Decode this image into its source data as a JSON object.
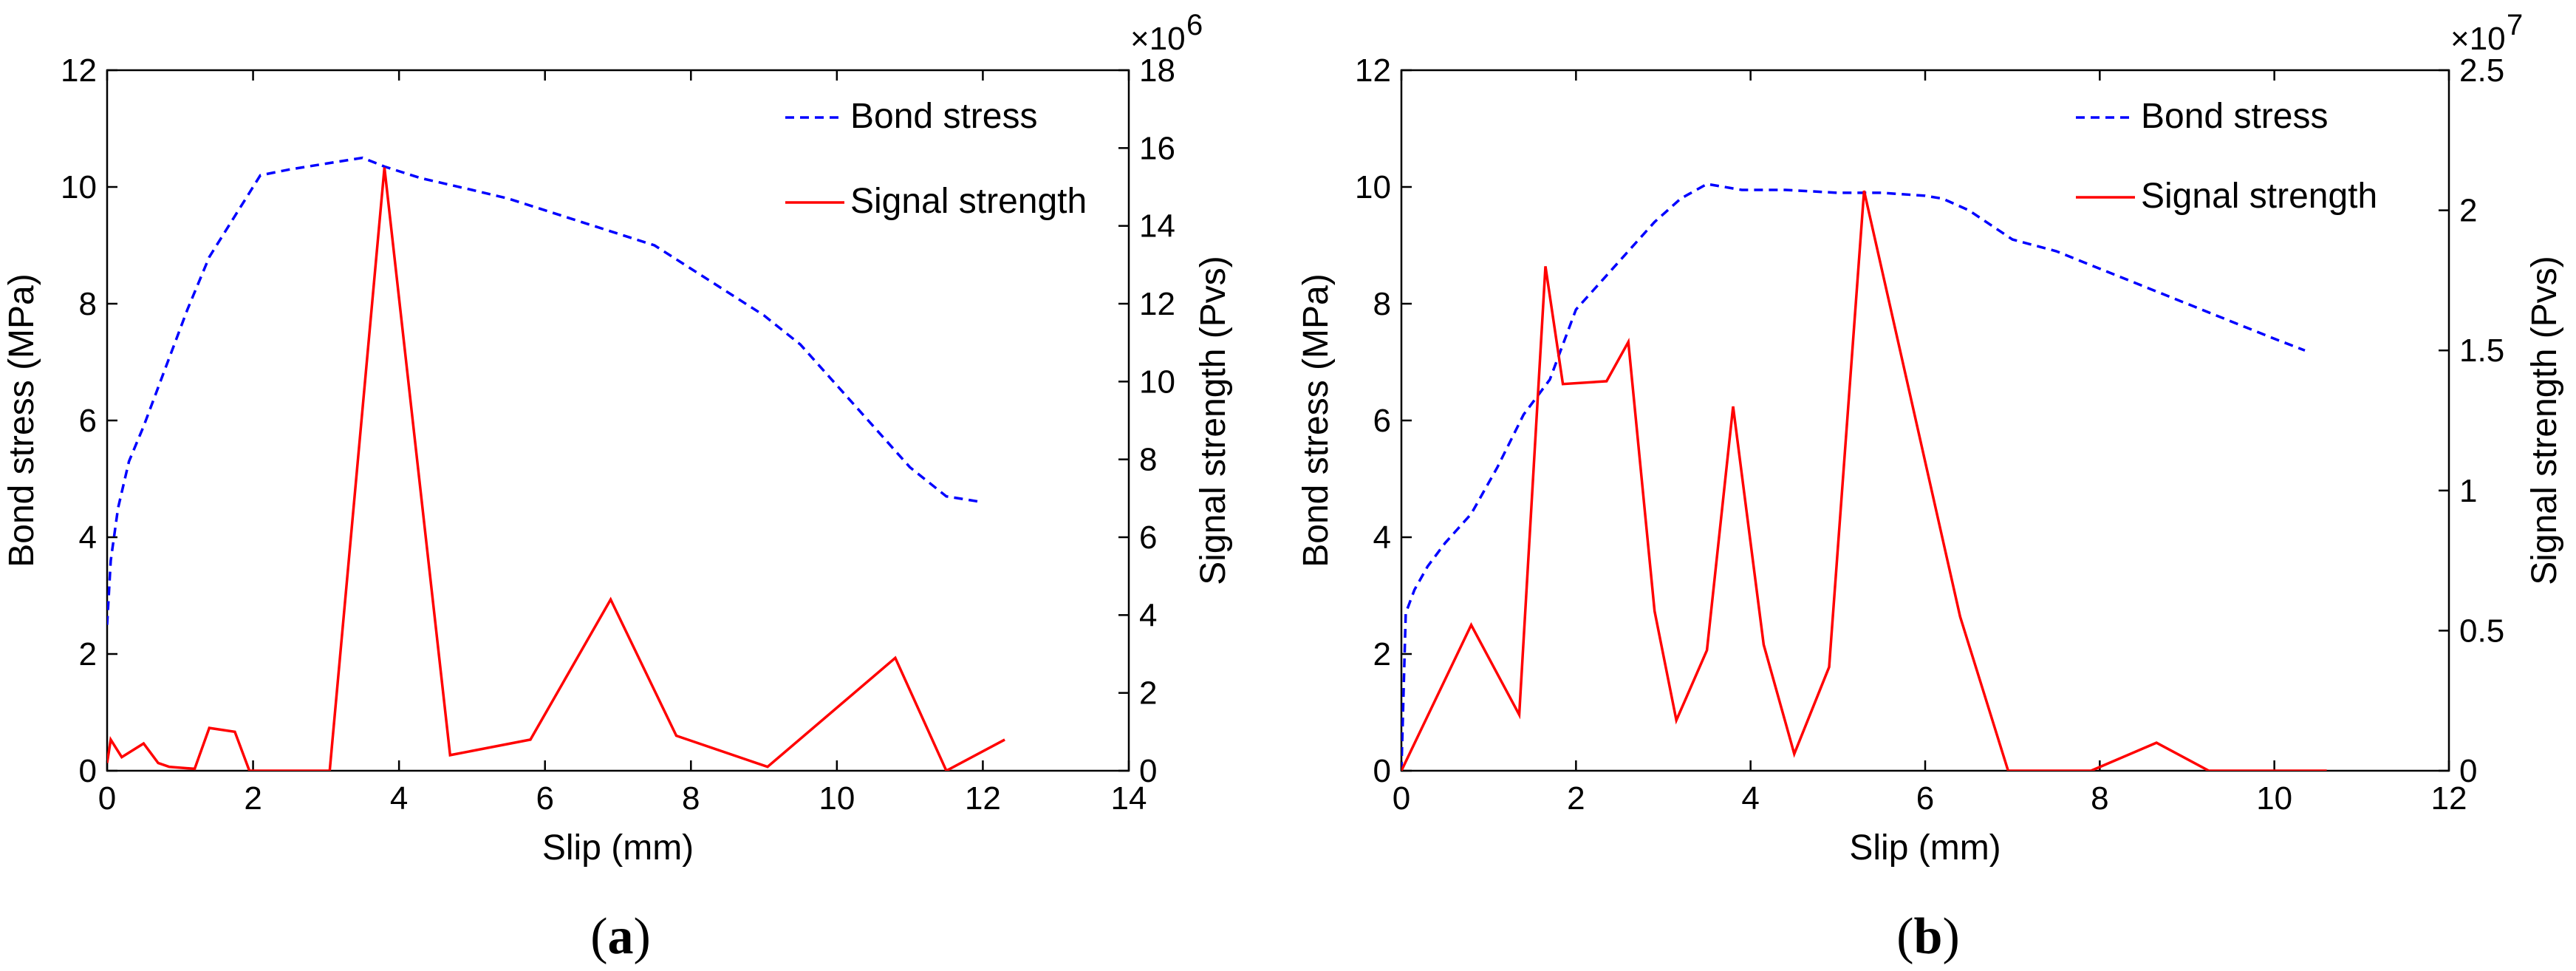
{
  "chart_data": [
    {
      "type": "line",
      "panel": "a",
      "panel_label": {
        "open": "(",
        "letter": "a",
        "close": ")"
      },
      "xlabel": "Slip (mm)",
      "ylabel": "Bond stress (MPa)",
      "y2label": "Signal strength (Pvs)",
      "xlim": [
        0,
        14
      ],
      "ylim": [
        0,
        12
      ],
      "y2lim": [
        0,
        18
      ],
      "y2_multiplier": "×10",
      "y2_exponent": "6",
      "y2_scale": 1000000,
      "xticks": [
        0,
        2,
        4,
        6,
        8,
        10,
        12,
        14
      ],
      "yticks": [
        0,
        2,
        4,
        6,
        8,
        10,
        12
      ],
      "y2ticks": [
        0,
        2,
        4,
        6,
        8,
        10,
        12,
        14,
        16,
        18
      ],
      "legend": [
        "Bond stress",
        "Signal strength"
      ],
      "series": [
        {
          "name": "Bond stress",
          "axis": "left",
          "color": "#0000ff",
          "style": "dashed",
          "x": [
            0,
            0.05,
            0.15,
            0.3,
            0.5,
            0.8,
            1.1,
            1.4,
            1.7,
            1.9,
            2.1,
            2.5,
            3.0,
            3.5,
            3.8,
            4.3,
            5.0,
            5.5,
            6.0,
            6.5,
            7.0,
            7.5,
            8.0,
            8.5,
            9.0,
            9.5,
            10.0,
            10.5,
            11.0,
            11.5,
            12.0
          ],
          "y": [
            2.5,
            3.6,
            4.5,
            5.3,
            5.9,
            6.9,
            7.9,
            8.8,
            9.4,
            9.8,
            10.2,
            10.3,
            10.4,
            10.5,
            10.35,
            10.15,
            9.95,
            9.8,
            9.6,
            9.4,
            9.2,
            9.0,
            8.6,
            8.2,
            7.8,
            7.3,
            6.6,
            5.9,
            5.2,
            4.7,
            4.6
          ]
        },
        {
          "name": "Signal strength",
          "axis": "right",
          "color": "#ff0000",
          "style": "solid",
          "x": [
            0,
            0.05,
            0.2,
            0.5,
            0.7,
            0.85,
            1.2,
            1.4,
            1.75,
            1.95,
            2.5,
            3.05,
            3.8,
            4.7,
            5.8,
            6.9,
            7.8,
            9.05,
            10.8,
            11.5,
            12.3
          ],
          "y": [
            0.2,
            0.8,
            0.35,
            0.7,
            0.2,
            0.1,
            0.05,
            1.1,
            1.0,
            0.0,
            0.0,
            0.0,
            15.5,
            0.4,
            0.8,
            4.4,
            0.9,
            0.1,
            2.9,
            0.0,
            0.8
          ]
        }
      ]
    },
    {
      "type": "line",
      "panel": "b",
      "panel_label": {
        "open": "(",
        "letter": "b",
        "close": ")"
      },
      "xlabel": "Slip (mm)",
      "ylabel": "Bond stress (MPa)",
      "y2label": "Signal strength (Pvs)",
      "xlim": [
        0,
        12
      ],
      "ylim": [
        0,
        12
      ],
      "y2lim": [
        0,
        2.5
      ],
      "y2_multiplier": "×10",
      "y2_exponent": "7",
      "y2_scale": 10000000,
      "xticks": [
        0,
        2,
        4,
        6,
        8,
        10,
        12
      ],
      "yticks": [
        0,
        2,
        4,
        6,
        8,
        10,
        12
      ],
      "y2ticks": [
        0,
        0.5,
        1,
        1.5,
        2,
        2.5
      ],
      "legend": [
        "Bond stress",
        "Signal strength"
      ],
      "series": [
        {
          "name": "Bond stress",
          "axis": "left",
          "color": "#0000ff",
          "style": "dashed",
          "x": [
            0,
            0.05,
            0.15,
            0.3,
            0.5,
            0.8,
            1.1,
            1.4,
            1.7,
            2.0,
            2.3,
            2.6,
            2.9,
            3.2,
            3.5,
            3.9,
            4.4,
            5.0,
            5.5,
            6.0,
            6.2,
            6.5,
            7.0,
            7.5,
            8.0,
            8.5,
            9.0,
            9.5,
            10.0,
            10.35
          ],
          "y": [
            0,
            2.7,
            3.1,
            3.5,
            3.9,
            4.4,
            5.2,
            6.1,
            6.7,
            7.9,
            8.4,
            8.9,
            9.4,
            9.8,
            10.05,
            9.95,
            9.95,
            9.9,
            9.9,
            9.85,
            9.8,
            9.6,
            9.1,
            8.9,
            8.6,
            8.3,
            8.0,
            7.7,
            7.4,
            7.2
          ]
        },
        {
          "name": "Signal strength",
          "axis": "right",
          "color": "#ff0000",
          "style": "solid",
          "x": [
            0,
            0.8,
            1.35,
            1.65,
            1.85,
            2.35,
            2.6,
            2.9,
            3.15,
            3.5,
            3.8,
            4.15,
            4.5,
            4.9,
            5.3,
            6.4,
            6.95,
            7.9,
            8.65,
            9.25,
            10.6
          ],
          "y": [
            0,
            0.52,
            0.2,
            1.8,
            1.38,
            1.39,
            1.53,
            0.57,
            0.18,
            0.43,
            1.3,
            0.45,
            0.06,
            0.37,
            2.07,
            0.55,
            0.0,
            0.0,
            0.1,
            0.0,
            0.0
          ]
        }
      ]
    }
  ]
}
